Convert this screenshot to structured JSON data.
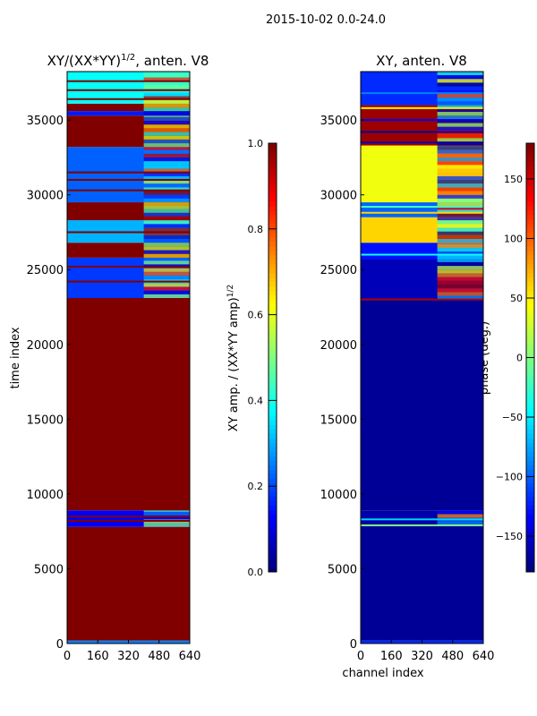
{
  "suptitle": "2015-10-02 0.0-24.0",
  "chart_data": [
    {
      "type": "heatmap",
      "title": "XY/(XX*YY)^1/2, anten. V8",
      "title_main": "XY/(XX*YY)",
      "title_sup": "1/2",
      "title_tail": ", anten. V8",
      "xlabel": "",
      "ylabel": "time index",
      "xlim": [
        0,
        640
      ],
      "ylim": [
        0,
        38240
      ],
      "xticks": [
        0,
        160,
        320,
        480,
        640
      ],
      "yticks": [
        0,
        5000,
        10000,
        15000,
        20000,
        25000,
        30000,
        35000
      ],
      "colorbar": {
        "label": "XY amp. / (XX*YY amp)^1/2",
        "label_main": "XY amp. / (XX*YY amp)",
        "label_sup": "1/2",
        "range": [
          0,
          1
        ],
        "ticks": [
          "0.0",
          "0.2",
          "0.4",
          "0.6",
          "0.8",
          "1.0"
        ],
        "tick_values": [
          0,
          0.2,
          0.4,
          0.6,
          0.8,
          1.0
        ]
      },
      "bands": [
        [
          0,
          200,
          0.25
        ],
        [
          200,
          7800,
          1.0
        ],
        [
          7800,
          8900,
          0.12
        ],
        [
          8900,
          23100,
          1.0
        ],
        [
          23100,
          25800,
          0.18
        ],
        [
          25800,
          26800,
          1.0
        ],
        [
          26800,
          28300,
          0.3
        ],
        [
          28300,
          29500,
          1.0
        ],
        [
          29500,
          33200,
          0.22
        ],
        [
          33200,
          35300,
          1.0
        ],
        [
          35300,
          35600,
          0.15
        ],
        [
          35600,
          36100,
          1.0
        ],
        [
          36100,
          38240,
          0.38
        ]
      ],
      "stripes": [
        [
          8200,
          1.0
        ],
        [
          8500,
          1.0
        ],
        [
          24200,
          1.0
        ],
        [
          25200,
          1.0
        ],
        [
          27500,
          1.0
        ],
        [
          30300,
          1.0
        ],
        [
          31000,
          1.0
        ],
        [
          31500,
          1.0
        ],
        [
          36400,
          1.0
        ],
        [
          37000,
          1.0
        ],
        [
          37600,
          1.0
        ]
      ],
      "rfi_channels": [
        400,
        640
      ]
    },
    {
      "type": "heatmap",
      "title": "XY, anten. V8",
      "xlabel": "channel index",
      "ylabel": "",
      "xlim": [
        0,
        640
      ],
      "ylim": [
        0,
        38240
      ],
      "xticks": [
        0,
        160,
        320,
        480,
        640
      ],
      "yticks": [
        0,
        5000,
        10000,
        15000,
        20000,
        25000,
        30000,
        35000
      ],
      "colorbar": {
        "label": "phase (deg.)",
        "range": [
          -180,
          180
        ],
        "ticks": [
          "−150",
          "−100",
          "−50",
          "0",
          "50",
          "100",
          "150"
        ],
        "tick_values": [
          -150,
          -100,
          -50,
          0,
          50,
          100,
          150
        ]
      },
      "bands": [
        [
          0,
          200,
          -120
        ],
        [
          200,
          7900,
          -172
        ],
        [
          7900,
          8900,
          -165
        ],
        [
          8900,
          23000,
          -172
        ],
        [
          23000,
          25700,
          -160
        ],
        [
          25700,
          26800,
          -130
        ],
        [
          26800,
          28500,
          60
        ],
        [
          28500,
          29500,
          -100
        ],
        [
          29500,
          33300,
          40
        ],
        [
          33300,
          36000,
          170
        ],
        [
          36000,
          38240,
          -120
        ]
      ],
      "stripes": [
        [
          7900,
          0
        ],
        [
          23000,
          160
        ],
        [
          8300,
          -60
        ],
        [
          26000,
          -40
        ],
        [
          28800,
          60
        ],
        [
          29200,
          -20
        ],
        [
          33500,
          -160
        ],
        [
          34200,
          -170
        ],
        [
          35000,
          -140
        ],
        [
          35800,
          40
        ],
        [
          36800,
          -90
        ]
      ],
      "rfi_channels": [
        400,
        640
      ]
    }
  ]
}
